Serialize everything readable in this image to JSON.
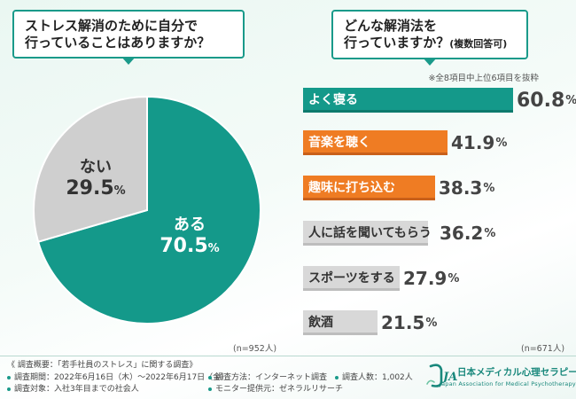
{
  "questions": {
    "q1": {
      "line1": "ストレス解消のために自分で",
      "line2": "行っていることはありますか？"
    },
    "q2": {
      "line1": "どんな解消法を",
      "line2": "行っていますか？",
      "sub": "(複数回答可)"
    }
  },
  "bar_note": "※全8項目中上位6項目を抜粋",
  "n_left": "(n=952人)",
  "n_right": "(n=671人)",
  "chart_data": [
    {
      "type": "pie",
      "title": "ストレス解消のために自分で行っていることはありますか？",
      "slices": [
        {
          "label": "ある",
          "value": 70.5,
          "display": "70.5",
          "unit": "%",
          "color": "#14998a"
        },
        {
          "label": "ない",
          "value": 29.5,
          "display": "29.5",
          "unit": "%",
          "color": "#cfcfcf"
        }
      ],
      "note": "(n=952人)"
    },
    {
      "type": "bar",
      "orientation": "horizontal",
      "title": "どんな解消法を行っていますか？(複数回答可)",
      "categories": [
        "よく寝る",
        "音楽を聴く",
        "趣味に打ち込む",
        "人に話を聞いてもらう",
        "スポーツをする",
        "飲酒"
      ],
      "values": [
        60.8,
        41.9,
        38.3,
        36.2,
        27.9,
        21.5
      ],
      "display": [
        "60.8",
        "41.9",
        "38.3",
        "36.2",
        "27.9",
        "21.5"
      ],
      "unit": "%",
      "colors": [
        "#14998a",
        "#ef7c23",
        "#ef7c23",
        "#d8d8d8",
        "#d8d8d8",
        "#d8d8d8"
      ],
      "highlight": [
        true,
        true,
        true,
        false,
        false,
        false
      ],
      "note": "(n=671人)"
    }
  ],
  "footer": {
    "title": "《 調査概要：「若手社員のストレス」に関する調査》",
    "period": "調査期間：2022年6月16日（木）～2022年6月17日（金）",
    "method": "調査方法：インターネット調査",
    "count": "調査人数：1,002人",
    "target": "調査対象：入社3年目までの社会人",
    "provider": "モニター提供元：ゼネラルリサーチ"
  },
  "logo": {
    "mark": "JAAMP",
    "name": "日本メディカル心理セラピー協会",
    "english": "Japan Association for Medical Psychotherapy"
  }
}
